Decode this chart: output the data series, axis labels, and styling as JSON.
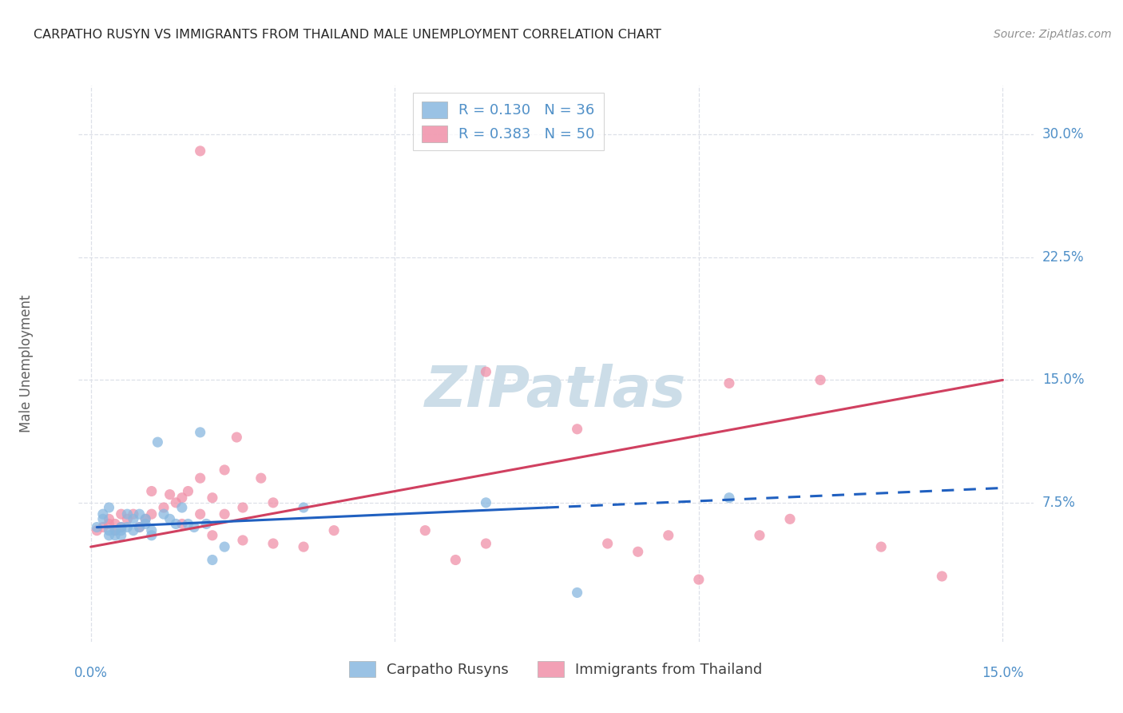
{
  "title": "CARPATHO RUSYN VS IMMIGRANTS FROM THAILAND MALE UNEMPLOYMENT CORRELATION CHART",
  "source": "Source: ZipAtlas.com",
  "ylabel": "Male Unemployment",
  "ytick_labels": [
    "7.5%",
    "15.0%",
    "22.5%",
    "30.0%"
  ],
  "ytick_values": [
    0.075,
    0.15,
    0.225,
    0.3
  ],
  "xtick_values": [
    0.0,
    0.05,
    0.1,
    0.15
  ],
  "xlim": [
    -0.002,
    0.155
  ],
  "ylim": [
    -0.01,
    0.33
  ],
  "legend_entries": [
    {
      "label": "R = 0.130   N = 36",
      "color": "#a8c8e8"
    },
    {
      "label": "R = 0.383   N = 50",
      "color": "#f4b0c0"
    }
  ],
  "legend_bottom": [
    "Carpatho Rusyns",
    "Immigrants from Thailand"
  ],
  "carpatho_color": "#88b8e0",
  "thailand_color": "#f090a8",
  "carpatho_x": [
    0.001,
    0.002,
    0.002,
    0.003,
    0.003,
    0.003,
    0.004,
    0.004,
    0.005,
    0.005,
    0.005,
    0.006,
    0.006,
    0.007,
    0.007,
    0.008,
    0.008,
    0.009,
    0.009,
    0.01,
    0.01,
    0.011,
    0.012,
    0.013,
    0.014,
    0.015,
    0.016,
    0.017,
    0.018,
    0.019,
    0.02,
    0.022,
    0.035,
    0.065,
    0.08,
    0.105
  ],
  "carpatho_y": [
    0.06,
    0.065,
    0.068,
    0.055,
    0.058,
    0.072,
    0.055,
    0.058,
    0.055,
    0.058,
    0.06,
    0.06,
    0.068,
    0.058,
    0.065,
    0.06,
    0.068,
    0.062,
    0.065,
    0.055,
    0.058,
    0.112,
    0.068,
    0.065,
    0.062,
    0.072,
    0.062,
    0.06,
    0.118,
    0.062,
    0.04,
    0.048,
    0.072,
    0.075,
    0.02,
    0.078
  ],
  "thailand_x": [
    0.001,
    0.002,
    0.003,
    0.003,
    0.004,
    0.004,
    0.005,
    0.005,
    0.006,
    0.007,
    0.008,
    0.009,
    0.01,
    0.01,
    0.012,
    0.013,
    0.014,
    0.015,
    0.015,
    0.016,
    0.018,
    0.018,
    0.02,
    0.02,
    0.022,
    0.022,
    0.024,
    0.025,
    0.025,
    0.028,
    0.03,
    0.03,
    0.035,
    0.04,
    0.055,
    0.06,
    0.065,
    0.065,
    0.08,
    0.085,
    0.09,
    0.095,
    0.1,
    0.105,
    0.11,
    0.115,
    0.12,
    0.13,
    0.14,
    0.018
  ],
  "thailand_y": [
    0.058,
    0.06,
    0.062,
    0.065,
    0.058,
    0.062,
    0.06,
    0.068,
    0.065,
    0.068,
    0.06,
    0.065,
    0.068,
    0.082,
    0.072,
    0.08,
    0.075,
    0.078,
    0.062,
    0.082,
    0.09,
    0.068,
    0.078,
    0.055,
    0.095,
    0.068,
    0.115,
    0.072,
    0.052,
    0.09,
    0.075,
    0.05,
    0.048,
    0.058,
    0.058,
    0.04,
    0.05,
    0.155,
    0.12,
    0.05,
    0.045,
    0.055,
    0.028,
    0.148,
    0.055,
    0.065,
    0.15,
    0.048,
    0.03,
    0.29
  ],
  "carpatho_line_start_x": 0.001,
  "carpatho_line_solid_end_x": 0.075,
  "carpatho_line_end_x": 0.15,
  "carpatho_line_start_y": 0.06,
  "carpatho_line_solid_end_y": 0.072,
  "carpatho_line_end_y": 0.084,
  "thailand_line_start_x": 0.0,
  "thailand_line_end_x": 0.15,
  "thailand_line_start_y": 0.048,
  "thailand_line_end_y": 0.15,
  "watermark": "ZIPatlas",
  "watermark_color": "#ccdde8",
  "background_color": "#ffffff",
  "grid_color": "#dde0e8",
  "title_color": "#282828",
  "axis_label_color": "#5090c8",
  "ylabel_color": "#606060"
}
